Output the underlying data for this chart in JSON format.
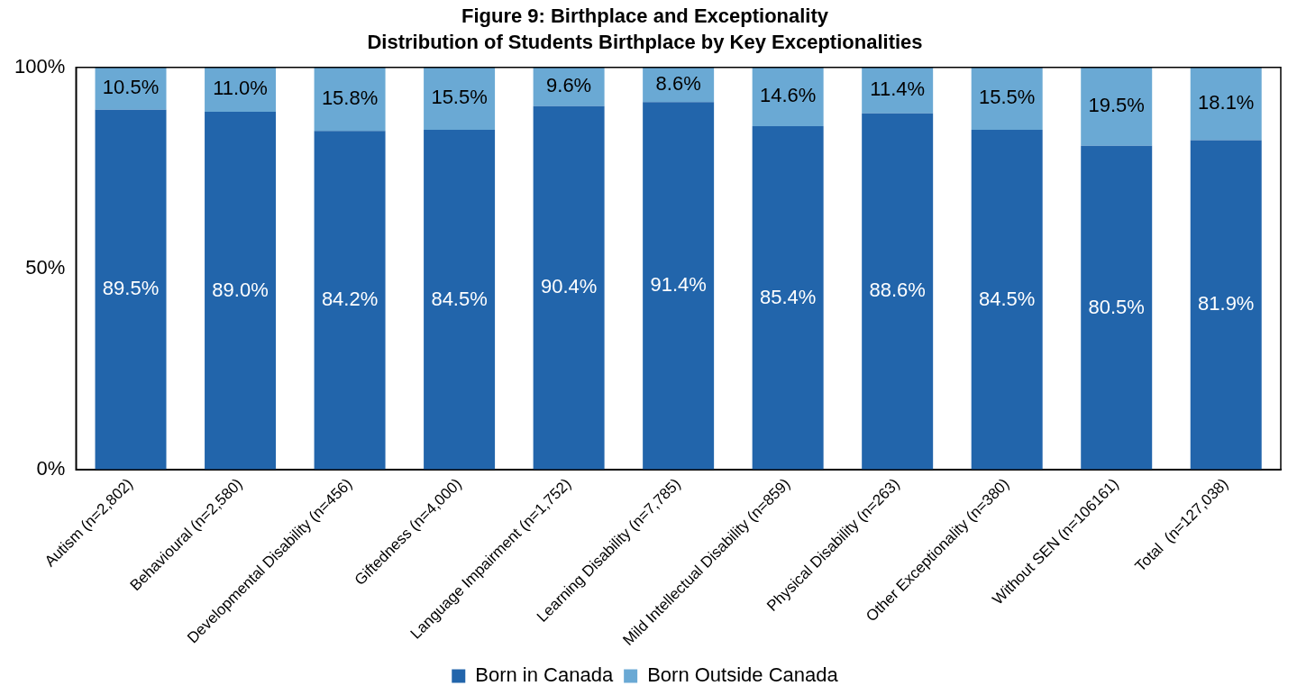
{
  "chart_data": {
    "type": "bar",
    "title": "Figure 9: Birthplace and Exceptionality",
    "subtitle": "Distribution of Students Birthplace by Key Exceptionalities",
    "categories": [
      "Autism (n=2,802)",
      "Behavioural (n=2,580)",
      "Developmental Disability (n=456)",
      "Giftedness (n=4,000)",
      "Language Impairment (n=1,752)",
      "Learning Disability (n=7,785)",
      "Mild Intellectual Disability (n=859)",
      "Physical Disability (n=263)",
      "Other Exceptionality (n=380)",
      "Without SEN (n=106161)",
      "Total  (n=127,038)"
    ],
    "stacked": true,
    "series": [
      {
        "name": "Born in Canada",
        "color": "#2265ab",
        "values": [
          89.5,
          89.0,
          84.2,
          84.5,
          90.4,
          91.4,
          85.4,
          88.6,
          84.5,
          80.5,
          81.9
        ],
        "value_labels": [
          "89.5%",
          "89.0%",
          "84.2%",
          "84.5%",
          "90.4%",
          "91.4%",
          "85.4%",
          "88.6%",
          "84.5%",
          "80.5%",
          "81.9%"
        ]
      },
      {
        "name": "Born Outside Canada",
        "color": "#6aa9d4",
        "values": [
          10.5,
          11.0,
          15.8,
          15.5,
          9.6,
          8.6,
          14.6,
          11.4,
          15.5,
          19.5,
          18.1
        ],
        "value_labels": [
          "10.5%",
          "11.0%",
          "15.8%",
          "15.5%",
          "9.6%",
          "8.6%",
          "14.6%",
          "11.4%",
          "15.5%",
          "19.5%",
          "18.1%"
        ]
      }
    ],
    "ylim": [
      0,
      100
    ],
    "yticks": [
      {
        "value": 0,
        "label": "0%"
      },
      {
        "value": 50,
        "label": "50%"
      },
      {
        "value": 100,
        "label": "100%"
      }
    ],
    "grid": false,
    "legend": "bottom"
  }
}
